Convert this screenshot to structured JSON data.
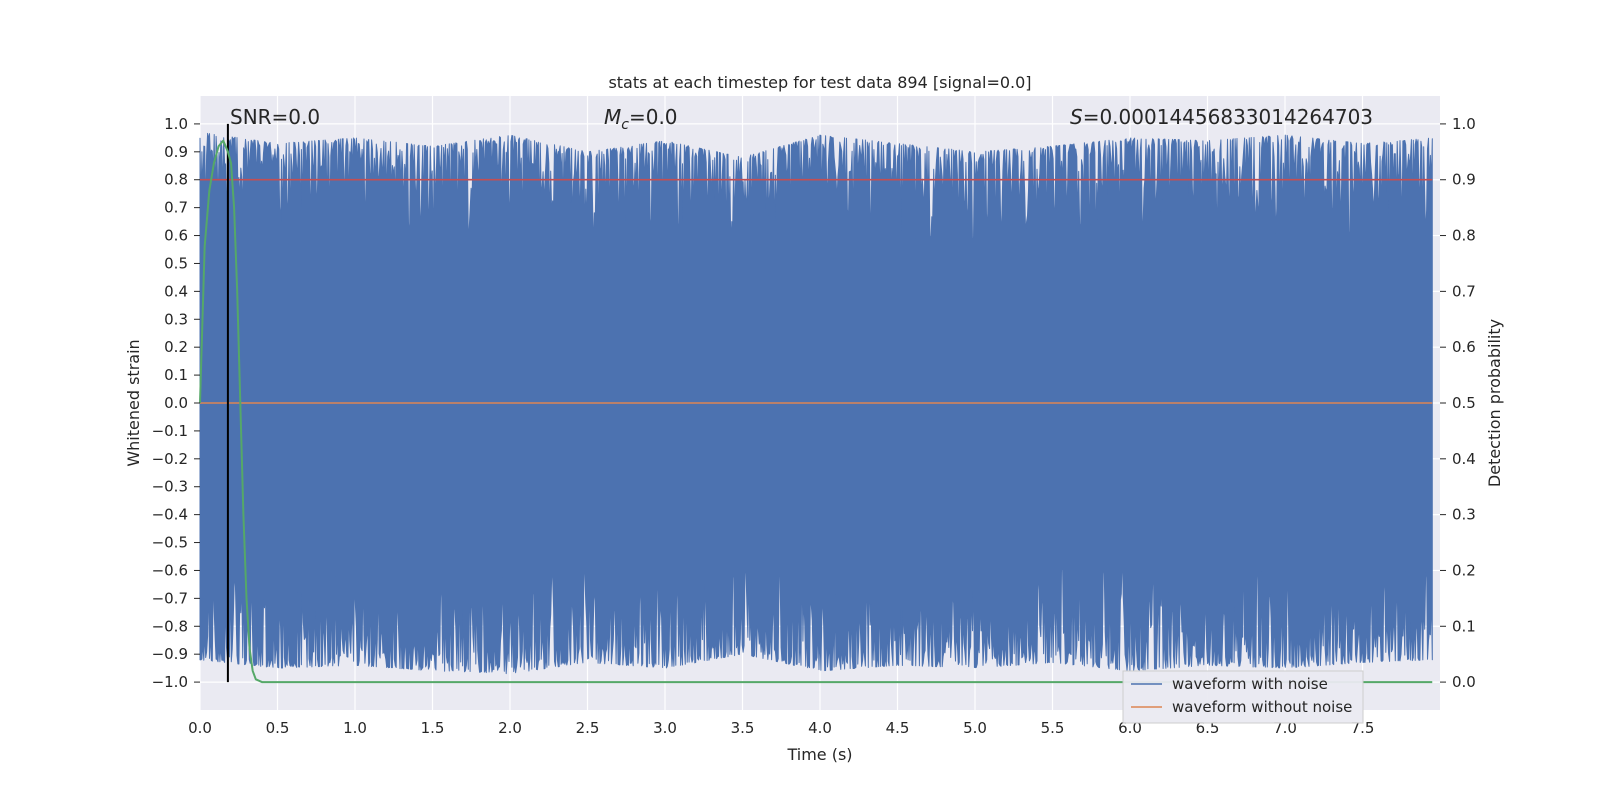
{
  "chart_data": {
    "type": "line",
    "title": "stats at each timestep for test data 894 [signal=0.0]",
    "xlabel": "Time (s)",
    "ylabel": "Whitened strain",
    "y2label": "Detection probability",
    "xlim": [
      0.0,
      8.0
    ],
    "ylim": [
      -1.1,
      1.1
    ],
    "y2lim": [
      -0.05,
      1.05
    ],
    "xticks": [
      0.0,
      0.5,
      1.0,
      1.5,
      2.0,
      2.5,
      3.0,
      3.5,
      4.0,
      4.5,
      5.0,
      5.5,
      6.0,
      6.5,
      7.0,
      7.5
    ],
    "xtick_labels": [
      "0.0",
      "0.5",
      "1.0",
      "1.5",
      "2.0",
      "2.5",
      "3.0",
      "3.5",
      "4.0",
      "4.5",
      "5.0",
      "5.5",
      "6.0",
      "6.5",
      "7.0",
      "7.5"
    ],
    "yticks": [
      1.0,
      0.9,
      0.8,
      0.7,
      0.6,
      0.5,
      0.4,
      0.3,
      0.2,
      0.1,
      0.0,
      -0.1,
      -0.2,
      -0.3,
      -0.4,
      -0.5,
      -0.6,
      -0.7,
      -0.8,
      -0.9,
      -1.0
    ],
    "ytick_labels": [
      "1.0",
      "0.9",
      "0.8",
      "0.7",
      "0.6",
      "0.5",
      "0.4",
      "0.3",
      "0.2",
      "0.1",
      "0.0",
      "−0.1",
      "−0.2",
      "−0.3",
      "−0.4",
      "−0.5",
      "−0.6",
      "−0.7",
      "−0.8",
      "−0.9",
      "−1.0"
    ],
    "y2ticks": [
      0.0,
      0.1,
      0.2,
      0.3,
      0.4,
      0.5,
      0.6,
      0.7,
      0.8,
      0.9,
      1.0
    ],
    "y2tick_labels": [
      "0.0",
      "0.1",
      "0.2",
      "0.3",
      "0.4",
      "0.5",
      "0.6",
      "0.7",
      "0.8",
      "0.9",
      "1.0"
    ],
    "grid": true,
    "legend_position": "bottom-right",
    "annotations": {
      "snr_label": "SNR=0.0",
      "mc_symbol": "M",
      "mc_subscript": "c",
      "mc_value": "=0.0",
      "s_symbol": "S",
      "s_value": "=0.00014456833014264703"
    },
    "series": [
      {
        "name": "waveform with noise",
        "color": "#4c72b0",
        "description_range": [
          -1.0,
          1.0
        ],
        "upper_envelope": [
          [
            0.0,
            0.97
          ],
          [
            0.5,
            0.93
          ],
          [
            1.0,
            0.95
          ],
          [
            1.5,
            0.92
          ],
          [
            2.0,
            0.96
          ],
          [
            2.5,
            0.9
          ],
          [
            3.0,
            0.94
          ],
          [
            3.5,
            0.88
          ],
          [
            4.0,
            0.96
          ],
          [
            4.5,
            0.93
          ],
          [
            5.0,
            0.9
          ],
          [
            5.5,
            0.92
          ],
          [
            6.0,
            0.95
          ],
          [
            6.5,
            0.94
          ],
          [
            7.0,
            0.96
          ],
          [
            7.5,
            0.93
          ],
          [
            7.95,
            0.95
          ]
        ],
        "lower_envelope": [
          [
            0.0,
            -0.92
          ],
          [
            0.5,
            -0.95
          ],
          [
            1.0,
            -0.94
          ],
          [
            1.5,
            -0.96
          ],
          [
            2.0,
            -0.97
          ],
          [
            2.5,
            -0.93
          ],
          [
            3.0,
            -0.95
          ],
          [
            3.5,
            -0.9
          ],
          [
            4.0,
            -0.96
          ],
          [
            4.5,
            -0.94
          ],
          [
            5.0,
            -0.95
          ],
          [
            5.5,
            -0.93
          ],
          [
            6.0,
            -0.96
          ],
          [
            6.5,
            -0.94
          ],
          [
            7.0,
            -0.95
          ],
          [
            7.5,
            -0.93
          ],
          [
            7.95,
            -0.92
          ]
        ]
      },
      {
        "name": "waveform without noise",
        "color": "#dd8452",
        "x": [
          0.0,
          7.95
        ],
        "y": [
          0.0,
          0.0
        ]
      },
      {
        "color": "#55a868",
        "axis": "right",
        "x": [
          0.0,
          0.03,
          0.06,
          0.09,
          0.12,
          0.15,
          0.18,
          0.2,
          0.22,
          0.24,
          0.26,
          0.28,
          0.3,
          0.32,
          0.34,
          0.36,
          0.4,
          1.0,
          2.0,
          3.0,
          4.0,
          5.0,
          6.0,
          7.0,
          7.95
        ],
        "y": [
          0.5,
          0.78,
          0.88,
          0.93,
          0.96,
          0.97,
          0.95,
          0.93,
          0.85,
          0.7,
          0.5,
          0.3,
          0.15,
          0.06,
          0.02,
          0.005,
          0.0,
          0.0,
          0.0,
          0.0,
          0.0,
          0.0,
          0.0,
          0.0,
          0.0
        ]
      }
    ],
    "hlines": [
      {
        "axis": "right",
        "y": 0.9,
        "color": "#c44e52"
      }
    ],
    "vlines": [
      {
        "x": 0.18,
        "ymin": -1.0,
        "ymax": 1.0,
        "color": "#000000"
      }
    ]
  }
}
